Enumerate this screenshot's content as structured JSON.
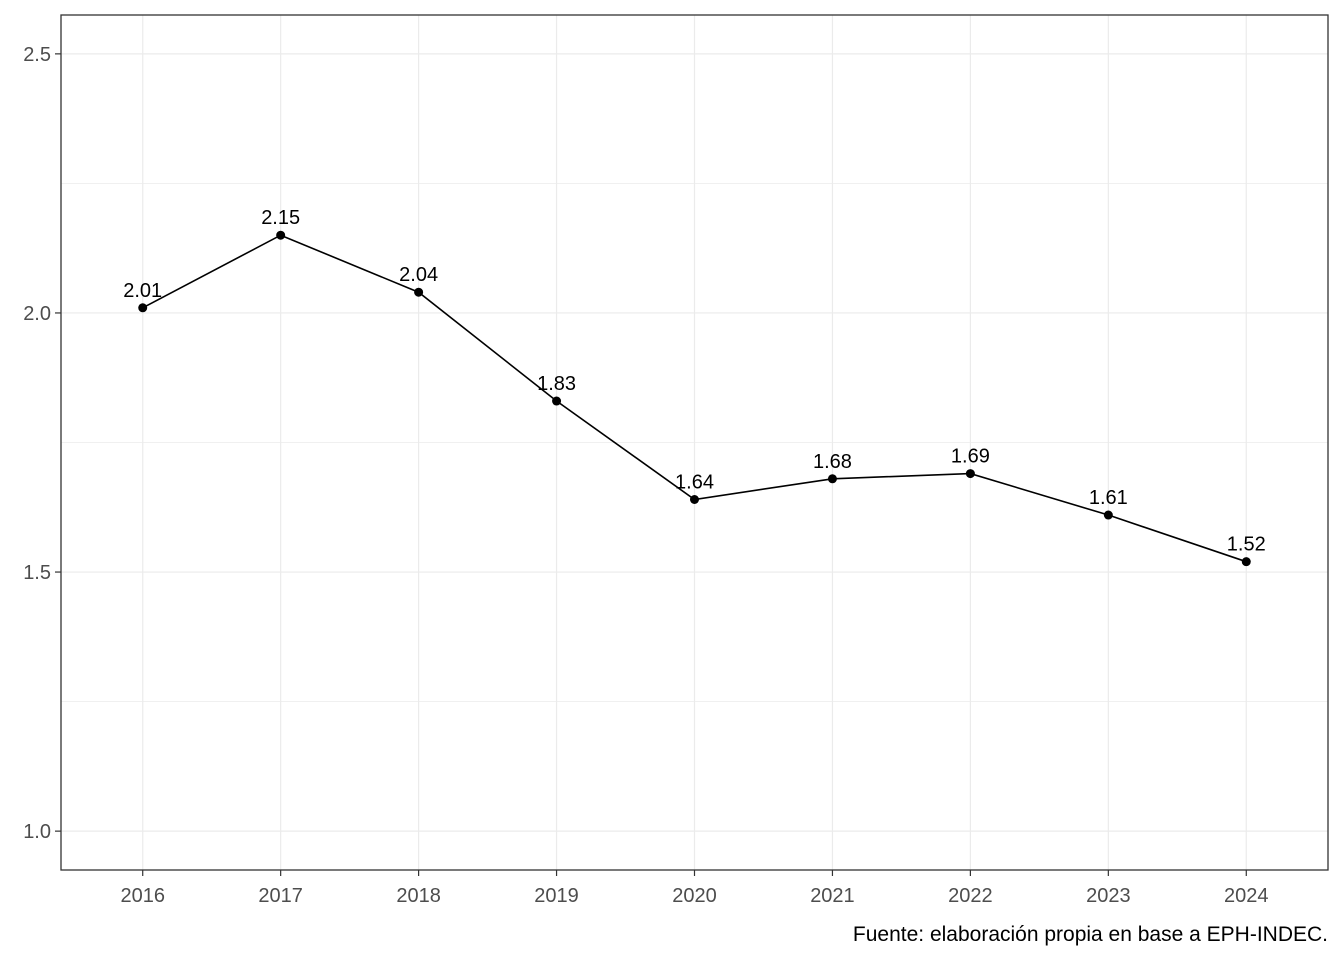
{
  "chart_data": {
    "type": "line",
    "title": "",
    "xlabel": "",
    "ylabel": "",
    "x": [
      "2016",
      "2017",
      "2018",
      "2019",
      "2020",
      "2021",
      "2022",
      "2023",
      "2024"
    ],
    "series": [
      {
        "values": [
          2.01,
          2.15,
          2.04,
          1.83,
          1.64,
          1.68,
          1.69,
          1.61,
          1.52
        ]
      }
    ],
    "data_labels": [
      "2.01",
      "2.15",
      "2.04",
      "1.83",
      "1.64",
      "1.68",
      "1.69",
      "1.61",
      "1.52"
    ],
    "ylim": [
      0.925,
      2.575
    ],
    "y_ticks": [
      1.0,
      1.5,
      2.0,
      2.5
    ],
    "y_tick_labels": [
      "1.0",
      "1.5",
      "2.0",
      "2.5"
    ],
    "y_minor_gridlines": [
      1.25,
      1.75,
      2.25
    ],
    "grid": true,
    "legend": "none",
    "line_color": "#000000",
    "grid_color": "#ebebeb",
    "caption": "Fuente: elaboración propia en base a EPH-INDEC."
  }
}
